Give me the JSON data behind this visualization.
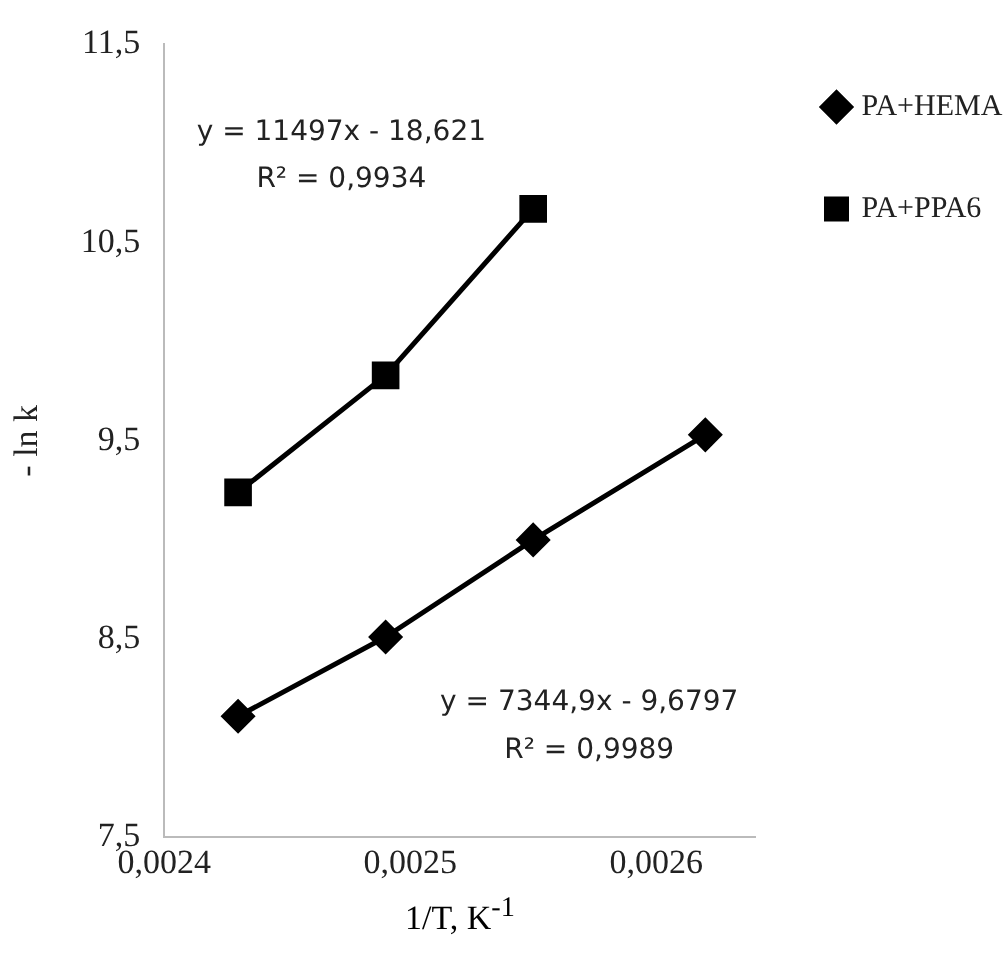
{
  "chart_data": {
    "type": "line",
    "xlabel": "1/T, K$^{-1}$",
    "ylabel": "- ln k",
    "xlim": [
      0.0024,
      0.00264
    ],
    "xticks": [
      {
        "value": 0.0024,
        "label": "0,0024"
      },
      {
        "value": 0.0025,
        "label": "0,0025"
      },
      {
        "value": 0.0026,
        "label": "0,0026"
      }
    ],
    "ylim": [
      7.5,
      11.5
    ],
    "yticks": [
      {
        "value": 7.5,
        "label": "7,5"
      },
      {
        "value": 8.5,
        "label": "8,5"
      },
      {
        "value": 9.5,
        "label": "9,5"
      },
      {
        "value": 10.5,
        "label": "10,5"
      },
      {
        "value": 11.5,
        "label": "11,5"
      }
    ],
    "series": [
      {
        "name": "PA+HEMA",
        "color": "#000000",
        "marker": "diamond",
        "x": [
          0.00243,
          0.00249,
          0.00255,
          0.00262
        ],
        "values": [
          8.11,
          8.51,
          9.0,
          9.53
        ]
      },
      {
        "name": "PA+PPA6",
        "color": "#000000",
        "marker": "square",
        "x": [
          0.00243,
          0.00249,
          0.00255
        ],
        "values": [
          9.24,
          9.83,
          10.67
        ]
      }
    ],
    "annotations": [
      "y = 11497x - 18,621",
      "R² = 0,9934",
      "y = 7344,9x - 9,6797",
      "R² = 0,9989"
    ],
    "grid": false,
    "legend": "right",
    "line_style": "solid"
  }
}
